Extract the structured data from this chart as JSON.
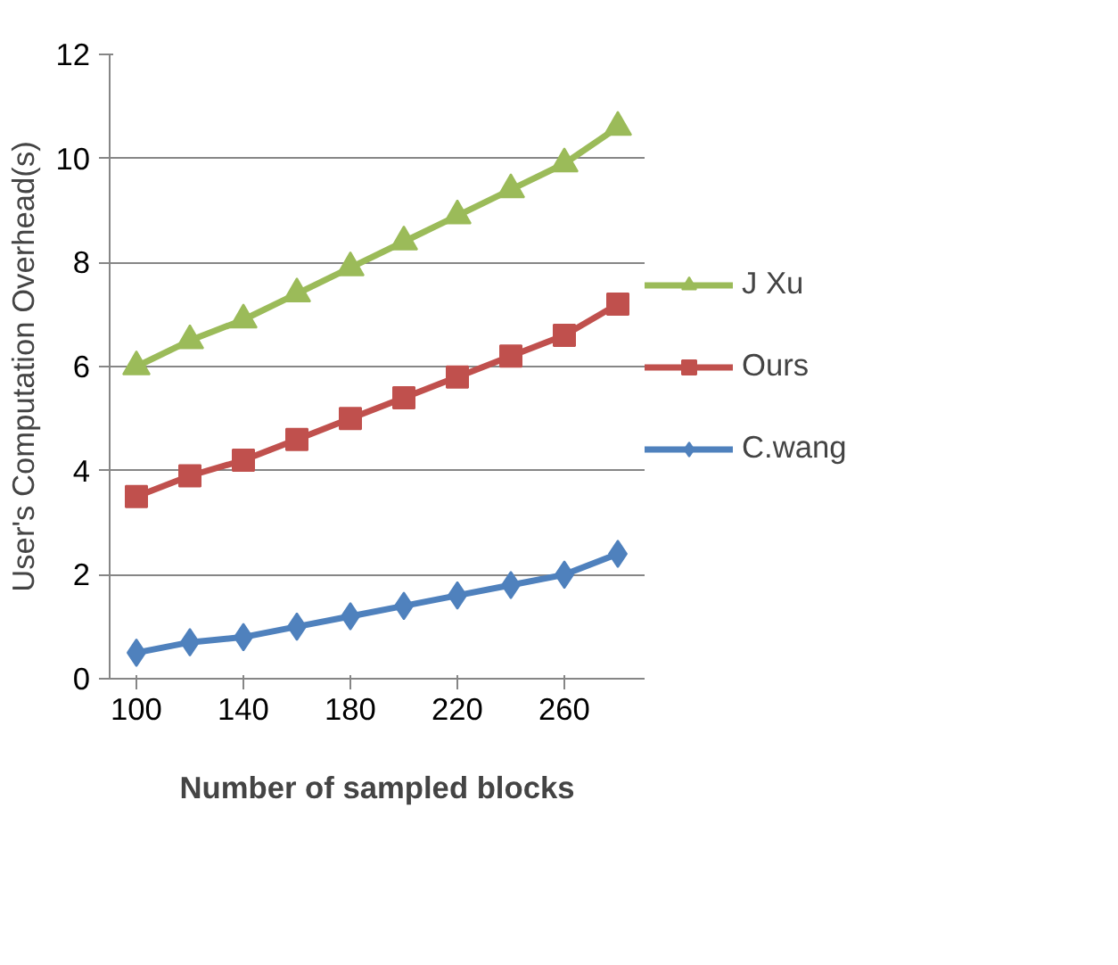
{
  "chart_data": {
    "type": "line",
    "xlabel": "Number of sampled blocks",
    "ylabel": "User's Computation Overhead(s)",
    "categories": [
      "100",
      null,
      "140",
      null,
      "180",
      null,
      "220",
      null,
      "260",
      null
    ],
    "ylim": [
      0,
      12
    ],
    "yticks": [
      0,
      2,
      4,
      6,
      8,
      10,
      12
    ],
    "grid": "y",
    "legend": "right",
    "line_style": "solid",
    "series": [
      {
        "name": "J Xu",
        "color": "#9bbb59",
        "marker": "triangle",
        "values": [
          6.0,
          6.5,
          6.9,
          7.4,
          7.9,
          8.4,
          8.9,
          9.4,
          9.9,
          10.6
        ]
      },
      {
        "name": "Ours",
        "color": "#c0504d",
        "marker": "square",
        "values": [
          3.5,
          3.9,
          4.2,
          4.6,
          5.0,
          5.4,
          5.8,
          6.2,
          6.6,
          7.2
        ]
      },
      {
        "name": "C.wang",
        "color": "#4f81bd",
        "marker": "diamond",
        "values": [
          0.5,
          0.7,
          0.8,
          1.0,
          1.2,
          1.4,
          1.6,
          1.8,
          2.0,
          2.4
        ]
      }
    ]
  }
}
